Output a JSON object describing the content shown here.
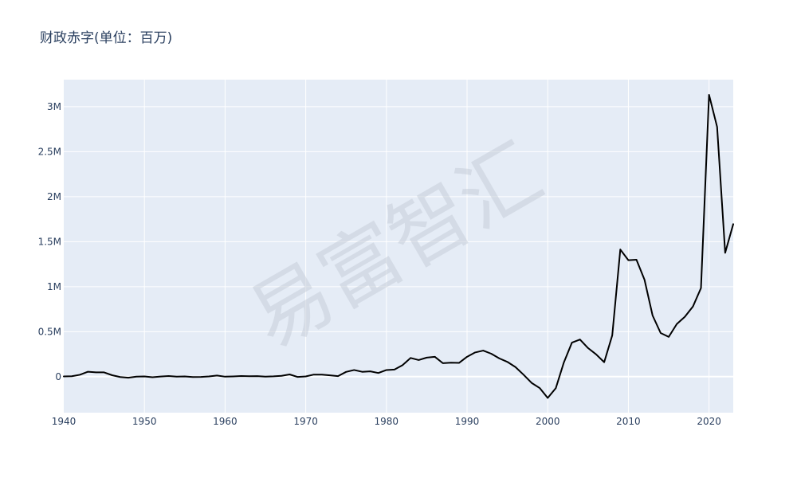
{
  "chart_data": {
    "type": "line",
    "title": "财政赤字(单位：百万)",
    "xlabel": "",
    "ylabel": "",
    "xlim": [
      1940,
      2023
    ],
    "ylim": [
      -400000,
      3300000
    ],
    "grid": true,
    "legend": "none",
    "x_ticks": [
      1940,
      1950,
      1960,
      1970,
      1980,
      1990,
      2000,
      2010,
      2020
    ],
    "x_tick_labels": [
      "1940",
      "1950",
      "1960",
      "1970",
      "1980",
      "1990",
      "2000",
      "2010",
      "2020"
    ],
    "y_ticks": [
      0,
      500000,
      1000000,
      1500000,
      2000000,
      2500000,
      3000000
    ],
    "y_tick_labels": [
      "0",
      "0.5M",
      "1M",
      "1.5M",
      "2M",
      "2.5M",
      "3M"
    ],
    "series": [
      {
        "color": "#000000",
        "x": [
          1940,
          1941,
          1942,
          1943,
          1944,
          1945,
          1946,
          1947,
          1948,
          1949,
          1950,
          1951,
          1952,
          1953,
          1954,
          1955,
          1956,
          1957,
          1958,
          1959,
          1960,
          1961,
          1962,
          1963,
          1964,
          1965,
          1966,
          1967,
          1968,
          1969,
          1970,
          1971,
          1972,
          1973,
          1974,
          1975,
          1976,
          1977,
          1978,
          1979,
          1980,
          1981,
          1982,
          1983,
          1984,
          1985,
          1986,
          1987,
          1988,
          1989,
          1990,
          1991,
          1992,
          1993,
          1994,
          1995,
          1996,
          1997,
          1998,
          1999,
          2000,
          2001,
          2002,
          2003,
          2004,
          2005,
          2006,
          2007,
          2008,
          2009,
          2010,
          2011,
          2012,
          2013,
          2014,
          2015,
          2016,
          2017,
          2018,
          2019,
          2020,
          2021,
          2022,
          2023
        ],
        "y": [
          3000,
          5000,
          21000,
          55000,
          48000,
          48000,
          16000,
          -4000,
          -12000,
          1000,
          3000,
          -6000,
          2000,
          7000,
          1000,
          3000,
          -4000,
          -3000,
          3000,
          13000,
          0,
          3000,
          7000,
          5000,
          6000,
          1000,
          4000,
          9000,
          25000,
          -3000,
          3000,
          23000,
          23000,
          15000,
          6000,
          53000,
          74000,
          54000,
          59000,
          41000,
          74000,
          79000,
          128000,
          208000,
          185000,
          212000,
          221000,
          150000,
          155000,
          153000,
          221000,
          269000,
          290000,
          255000,
          203000,
          164000,
          107000,
          22000,
          -69000,
          -126000,
          -236000,
          -128000,
          158000,
          378000,
          413000,
          318000,
          248000,
          161000,
          459000,
          1413000,
          1294000,
          1300000,
          1077000,
          680000,
          485000,
          442000,
          585000,
          665000,
          779000,
          984000,
          3132000,
          2775000,
          1376000,
          1695000
        ]
      }
    ],
    "watermark": "易富智汇",
    "colors": {
      "plot_background": "#e5ecf6",
      "grid": "#ffffff",
      "axis_text": "#2a3f5f",
      "title": "#2a3f5f",
      "line": "#000000"
    }
  }
}
